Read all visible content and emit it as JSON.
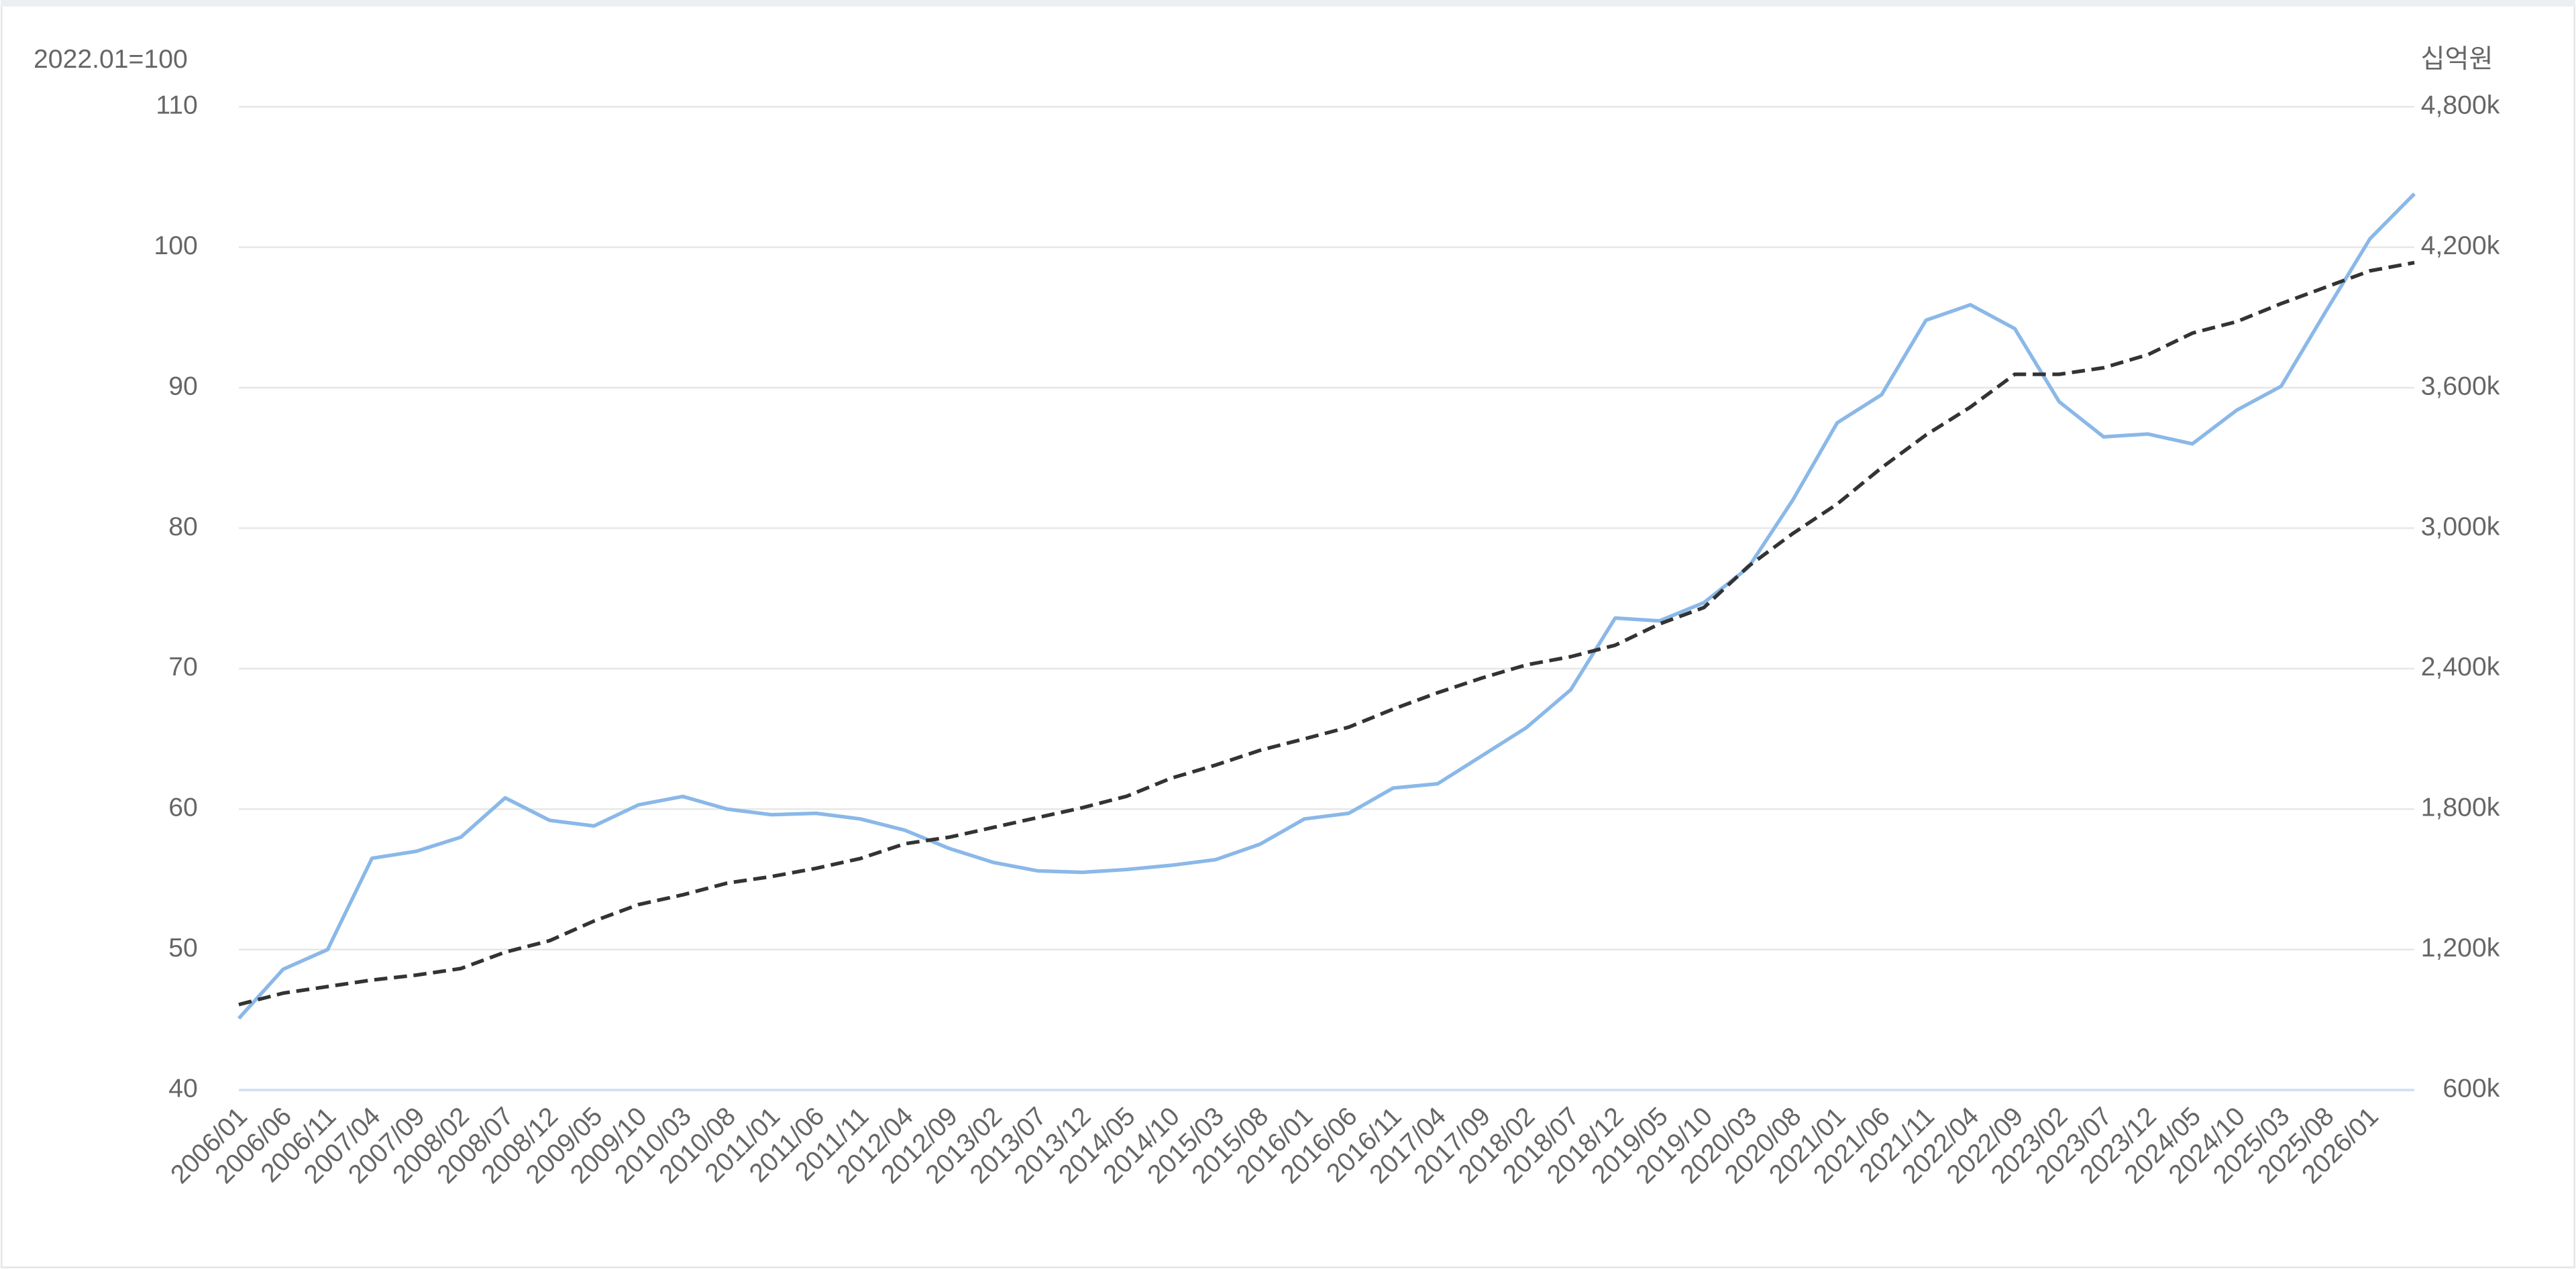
{
  "chart_data": {
    "type": "line",
    "y_axis_label": "2022.01=100",
    "y2_axis_label": "십억원",
    "categories": [
      "2006/01",
      "2006/06",
      "2006/11",
      "2007/04",
      "2007/09",
      "2008/02",
      "2008/07",
      "2008/12",
      "2009/05",
      "2009/10",
      "2010/03",
      "2010/08",
      "2011/01",
      "2011/06",
      "2011/11",
      "2012/04",
      "2012/09",
      "2013/02",
      "2013/07",
      "2013/12",
      "2014/05",
      "2014/10",
      "2015/03",
      "2015/08",
      "2016/01",
      "2016/06",
      "2016/11",
      "2017/04",
      "2017/09",
      "2018/02",
      "2018/07",
      "2018/12",
      "2019/05",
      "2019/10",
      "2020/03",
      "2020/08",
      "2021/01",
      "2021/06",
      "2021/11",
      "2022/04",
      "2022/09",
      "2023/02",
      "2023/07",
      "2023/12",
      "2024/05",
      "2024/10",
      "2025/03",
      "2025/08",
      "2026/01",
      null
    ],
    "series": [
      {
        "color": "#8ab8e8",
        "line_style": "solid",
        "axis": "y",
        "values": [
          45.1,
          48.6,
          50.0,
          56.5,
          57.0,
          58.0,
          60.8,
          59.2,
          58.8,
          60.3,
          60.9,
          60.0,
          59.6,
          59.7,
          59.3,
          58.5,
          57.2,
          56.2,
          55.6,
          55.5,
          55.7,
          56.0,
          56.4,
          57.5,
          59.3,
          59.7,
          61.5,
          61.8,
          63.8,
          65.8,
          68.5,
          73.6,
          73.4,
          74.7,
          77.2,
          82.0,
          87.5,
          89.5,
          94.8,
          95.9,
          94.2,
          89.0,
          86.5,
          86.7,
          86.0,
          88.4,
          90.1,
          95.4,
          100.6,
          103.8
        ]
      },
      {
        "color": "#333333",
        "line_style": "dashed",
        "axis": "y2",
        "values": [
          965,
          1014,
          1042,
          1070,
          1091,
          1119,
          1189,
          1238,
          1322,
          1392,
          1434,
          1484,
          1512,
          1547,
          1589,
          1652,
          1680,
          1722,
          1764,
          1806,
          1855,
          1932,
          1988,
          2051,
          2100,
          2150,
          2227,
          2297,
          2360,
          2416,
          2451,
          2500,
          2591,
          2661,
          2837,
          2977,
          3103,
          3258,
          3398,
          3517,
          3657,
          3657,
          3685,
          3741,
          3833,
          3882,
          3959,
          4029,
          4099,
          4134
        ]
      }
    ],
    "ylim": [
      40,
      110
    ],
    "yticks": [
      40,
      50,
      60,
      70,
      80,
      90,
      100,
      110
    ],
    "y2lim": [
      600,
      4800
    ],
    "y2ticks": [
      {
        "value": 600,
        "label": "600k"
      },
      {
        "value": 1200,
        "label": "1,200k"
      },
      {
        "value": 1800,
        "label": "1,800k"
      },
      {
        "value": 2400,
        "label": "2,400k"
      },
      {
        "value": 3000,
        "label": "3,000k"
      },
      {
        "value": 3600,
        "label": "3,600k"
      },
      {
        "value": 4200,
        "label": "4,200k"
      },
      {
        "value": 4800,
        "label": "4,800k"
      }
    ],
    "grid": true
  }
}
